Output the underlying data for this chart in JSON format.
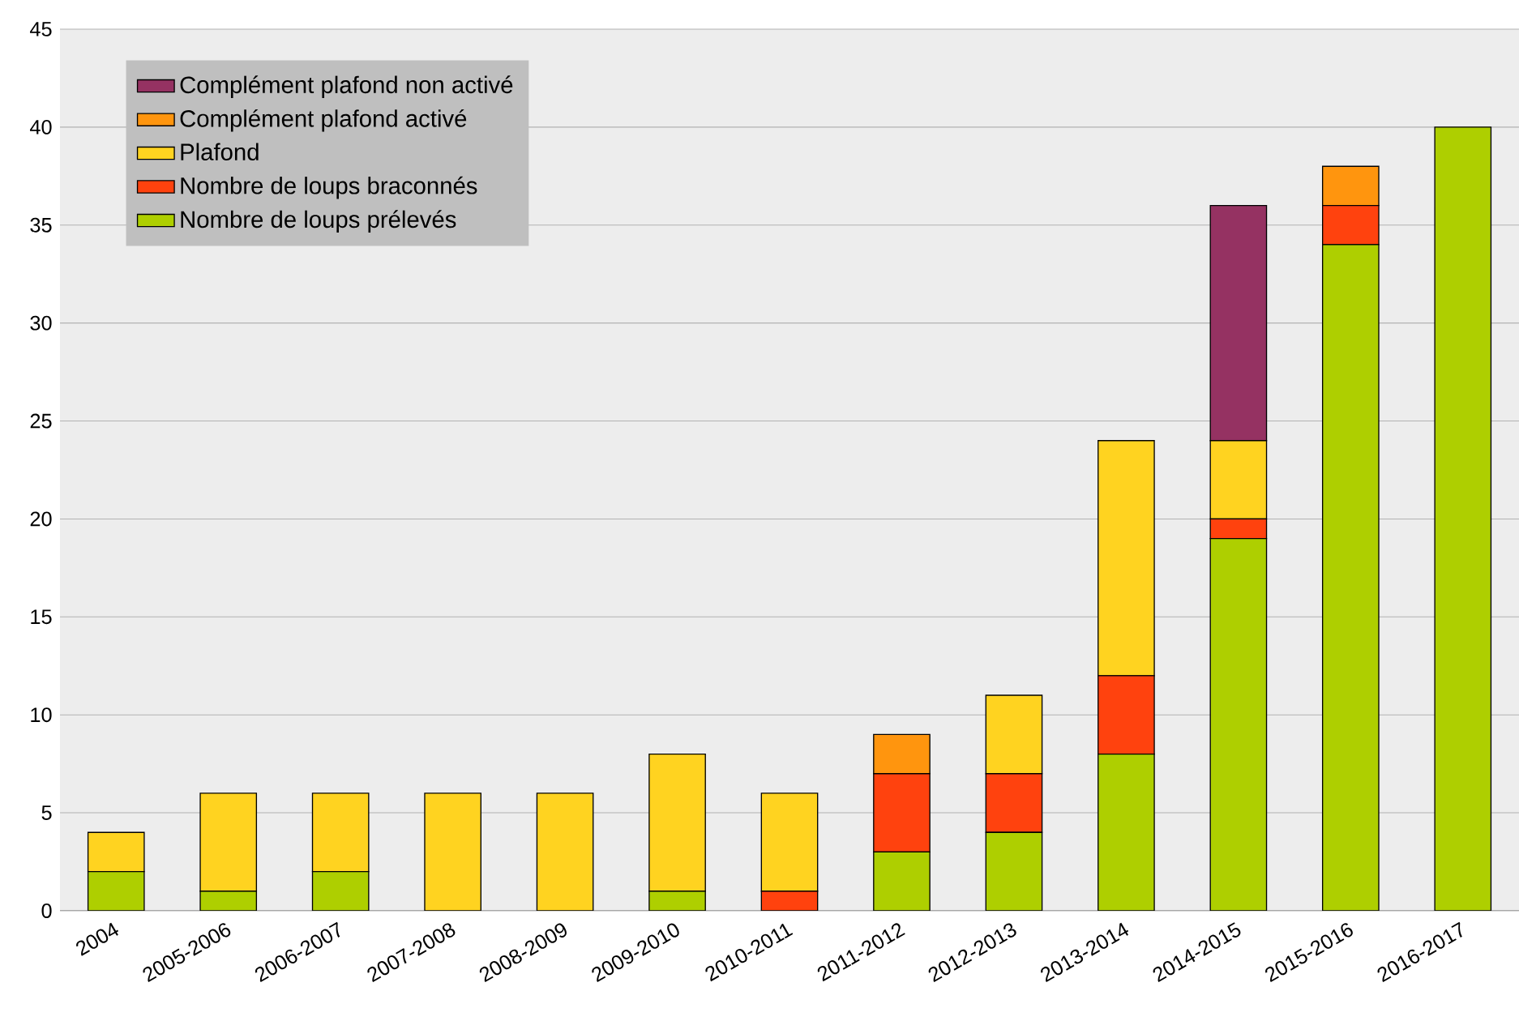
{
  "chart_data": {
    "type": "bar",
    "stacked": true,
    "categories": [
      "2004",
      "2005-2006",
      "2006-2007",
      "2007-2008",
      "2008-2009",
      "2009-2010",
      "2010-2011",
      "2011-2012",
      "2012-2013",
      "2013-2014",
      "2014-2015",
      "2015-2016",
      "2016-2017"
    ],
    "series": [
      {
        "name": "Nombre de loups prélevés",
        "color": "#aecf00",
        "values": [
          2,
          1,
          2,
          0,
          0,
          1,
          0,
          3,
          4,
          8,
          19,
          34,
          40
        ]
      },
      {
        "name": "Nombre de loups braconnés",
        "color": "#ff420e",
        "values": [
          0,
          0,
          0,
          0,
          0,
          0,
          1,
          4,
          3,
          4,
          1,
          2,
          0
        ]
      },
      {
        "name": "Plafond",
        "color": "#ffd320",
        "values": [
          2,
          5,
          4,
          6,
          6,
          7,
          5,
          0,
          4,
          12,
          4,
          0,
          0
        ]
      },
      {
        "name": "Complément plafond activé",
        "color": "#ff950e",
        "values": [
          0,
          0,
          0,
          0,
          0,
          0,
          0,
          2,
          0,
          0,
          0,
          2,
          0
        ]
      },
      {
        "name": "Complément plafond non activé",
        "color": "#953262",
        "values": [
          0,
          0,
          0,
          0,
          0,
          0,
          0,
          0,
          0,
          0,
          12,
          0,
          0
        ]
      }
    ],
    "ylim": [
      0,
      45
    ],
    "yticks": [
      0,
      5,
      10,
      15,
      20,
      25,
      30,
      35,
      40,
      45
    ],
    "grid": "y",
    "legend": "top left"
  }
}
